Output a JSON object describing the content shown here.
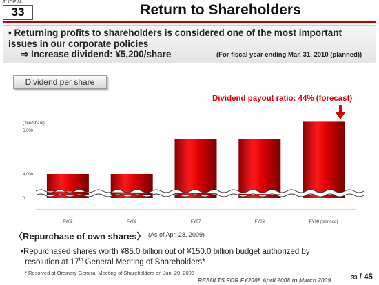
{
  "header": {
    "slide_no_label": "SLIDE No.",
    "slide_no": "33",
    "title": "Return to Shareholders"
  },
  "intro": {
    "line1": "• Returning profits to shareholders is considered one of the most important",
    "line2": "issues in our corporate policies",
    "line3": "⇒ Increase dividend:   ¥5,200/share",
    "note": "(For fiscal year ending Mar. 31, 2010 (planned))"
  },
  "section_tab": "Dividend per share",
  "payout_label": "Dividend payout ratio: 44% (forecast)",
  "chart_data": {
    "type": "bar",
    "ylabel": "(Yen/Share)",
    "categories": [
      "FY05",
      "FY06",
      "FY07",
      "FY08",
      "FY09 (planned)"
    ],
    "values": [
      4000,
      4000,
      4800,
      4800,
      5200
    ],
    "yticks": [
      0,
      4000,
      5000
    ],
    "ytick_labels": [
      "0",
      "4,000",
      "5,000"
    ],
    "broken_axis": true,
    "bar_color": "#c60000",
    "grid": false
  },
  "repurchase": {
    "title": "〈Repurchase of own shares〉",
    "as_of": "(As of Apr. 28, 2009)",
    "body1": "•Repurchased shares worth ¥85.0 billion out of ¥150.0 billion budget authorized by",
    "body2_pre": "resolution at 17",
    "body2_sup": "th",
    "body2_post": " General Meeting of Shareholders*",
    "footnote": "* Resolved at Ordinary General Meeting of Shareholders on Jun. 20, 2008"
  },
  "footer": {
    "text": "RESULTS FOR FY2008  April 2008 to March 2009",
    "page_current": "33",
    "page_sep": " / ",
    "page_total": "45"
  }
}
